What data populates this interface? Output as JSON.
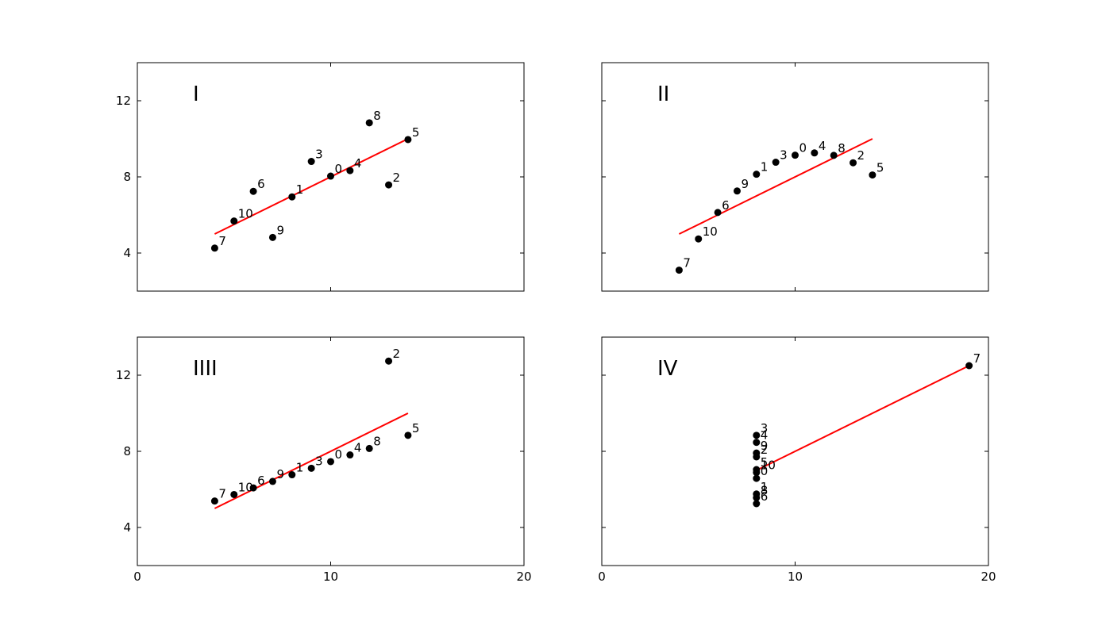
{
  "chart_data": [
    {
      "type": "scatter",
      "annotation": "I",
      "x": [
        10,
        8,
        13,
        9,
        11,
        14,
        6,
        4,
        12,
        7,
        5
      ],
      "point_labels": [
        "0",
        "1",
        "2",
        "3",
        "4",
        "5",
        "6",
        "7",
        "8",
        "9",
        "10"
      ],
      "series": [
        {
          "color": "#000000",
          "values": [
            8.04,
            6.95,
            7.58,
            8.81,
            8.33,
            9.96,
            7.24,
            4.26,
            10.84,
            4.82,
            5.68
          ]
        }
      ],
      "fit_line": {
        "color": "#ff0000",
        "x": [
          4,
          14
        ],
        "values": [
          5,
          10
        ]
      },
      "xlim": [
        0,
        20
      ],
      "ylim": [
        2,
        14
      ],
      "xticks": [
        0,
        10,
        20
      ],
      "yticks": [
        4,
        8,
        12
      ]
    },
    {
      "type": "scatter",
      "annotation": "II",
      "x": [
        10,
        8,
        13,
        9,
        11,
        14,
        6,
        4,
        12,
        7,
        5
      ],
      "point_labels": [
        "0",
        "1",
        "2",
        "3",
        "4",
        "5",
        "6",
        "7",
        "8",
        "9",
        "10"
      ],
      "series": [
        {
          "color": "#000000",
          "values": [
            9.14,
            8.14,
            8.74,
            8.77,
            9.26,
            8.1,
            6.13,
            3.1,
            9.13,
            7.26,
            4.74
          ]
        }
      ],
      "fit_line": {
        "color": "#ff0000",
        "x": [
          4,
          14
        ],
        "values": [
          5,
          10
        ]
      },
      "xlim": [
        0,
        20
      ],
      "ylim": [
        2,
        14
      ],
      "xticks": [
        0,
        10,
        20
      ],
      "yticks": [
        4,
        8,
        12
      ]
    },
    {
      "type": "scatter",
      "annotation": "IIII",
      "x": [
        10,
        8,
        13,
        9,
        11,
        14,
        6,
        4,
        12,
        7,
        5
      ],
      "point_labels": [
        "0",
        "1",
        "2",
        "3",
        "4",
        "5",
        "6",
        "7",
        "8",
        "9",
        "10"
      ],
      "series": [
        {
          "color": "#000000",
          "values": [
            7.46,
            6.77,
            12.74,
            7.11,
            7.81,
            8.84,
            6.08,
            5.39,
            8.15,
            6.42,
            5.73
          ]
        }
      ],
      "fit_line": {
        "color": "#ff0000",
        "x": [
          4,
          14
        ],
        "values": [
          5,
          10
        ]
      },
      "xlim": [
        0,
        20
      ],
      "ylim": [
        2,
        14
      ],
      "xticks": [
        0,
        10,
        20
      ],
      "yticks": [
        4,
        8,
        12
      ]
    },
    {
      "type": "scatter",
      "annotation": "IV",
      "x": [
        8,
        8,
        8,
        8,
        8,
        8,
        8,
        19,
        8,
        8,
        8
      ],
      "point_labels": [
        "0",
        "1",
        "2",
        "3",
        "4",
        "5",
        "6",
        "7",
        "8",
        "9",
        "10"
      ],
      "series": [
        {
          "color": "#000000",
          "values": [
            6.58,
            5.76,
            7.71,
            8.84,
            8.47,
            7.04,
            5.25,
            12.5,
            5.56,
            7.91,
            6.89
          ]
        }
      ],
      "fit_line": {
        "color": "#ff0000",
        "x": [
          8,
          19
        ],
        "values": [
          7,
          12.5
        ]
      },
      "xlim": [
        0,
        20
      ],
      "ylim": [
        2,
        14
      ],
      "xticks": [
        0,
        10,
        20
      ],
      "yticks": [
        4,
        8,
        12
      ]
    }
  ]
}
